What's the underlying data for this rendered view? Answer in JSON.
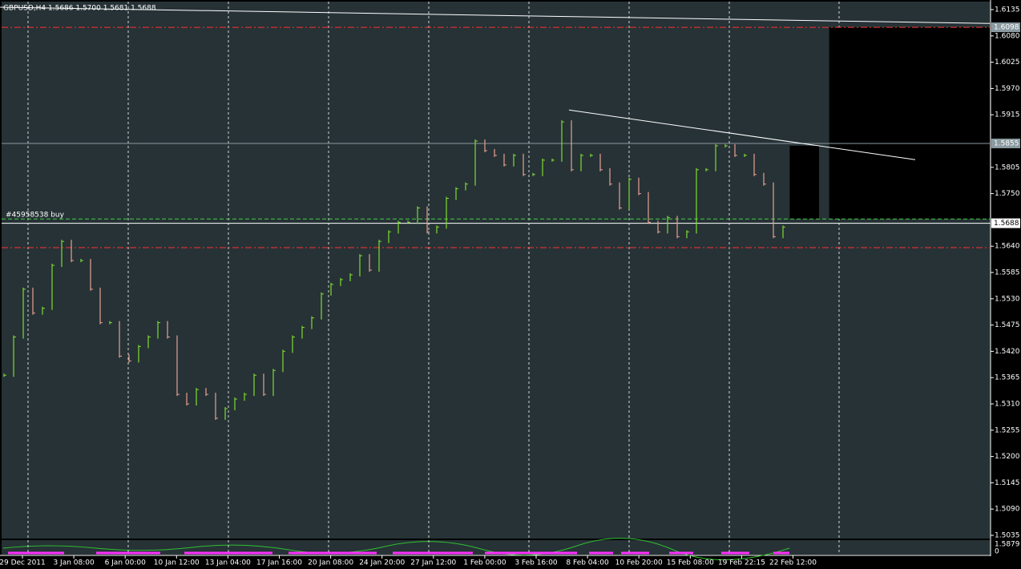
{
  "header": "GBPUSD,H4  1.5686 1.5700 1.5681 1.5688",
  "order_label": "#45958538 buy",
  "mark": "?",
  "chart_data": {
    "type": "bars",
    "close": [
      1.537,
      1.545,
      1.555,
      1.55,
      1.551,
      1.56,
      1.565,
      1.561,
      1.561,
      1.555,
      1.548,
      1.548,
      1.541,
      1.54,
      1.543,
      1.545,
      1.548,
      1.545,
      1.533,
      1.531,
      1.534,
      1.533,
      1.528,
      1.53,
      1.532,
      1.533,
      1.537,
      1.533,
      1.538,
      1.542,
      1.545,
      1.547,
      1.549,
      1.554,
      1.556,
      1.557,
      1.558,
      1.562,
      1.559,
      1.565,
      1.567,
      1.569,
      1.569,
      1.572,
      1.567,
      1.568,
      1.574,
      1.576,
      1.577,
      1.586,
      1.584,
      1.583,
      1.581,
      1.583,
      1.579,
      1.579,
      1.582,
      1.582,
      1.59,
      1.58,
      1.583,
      1.583,
      1.58,
      1.577,
      1.572,
      1.578,
      1.575,
      1.569,
      1.567,
      1.57,
      1.566,
      1.567,
      1.58,
      1.58,
      1.585,
      1.585,
      1.583,
      1.583,
      1.579,
      1.577,
      1.566,
      1.568
    ],
    "up_color": "#7fdc30",
    "down_color": "#e8a090",
    "ylim": [
      1.5035,
      1.6135
    ],
    "yticks": [
      1.6135,
      {
        "value": 1.608,
        "label": "1.6080"
      },
      1.6025,
      {
        "value": 1.597,
        "label": "1.5970"
      },
      1.5915,
      1.5805,
      {
        "value": 1.575,
        "label": "1.5750"
      },
      {
        "value": 1.564,
        "label": "1.5640"
      },
      1.5585,
      {
        "value": 1.553,
        "label": "1.5530"
      },
      1.5475,
      {
        "value": 1.542,
        "label": "1.5420"
      },
      1.5365,
      {
        "value": 1.531,
        "label": "1.5310"
      },
      1.5255,
      {
        "value": 1.52,
        "label": "1.5200"
      },
      1.5145,
      {
        "value": 1.509,
        "label": "1.5090"
      },
      1.5035
    ],
    "price_tags": [
      1.6098,
      1.5855,
      1.5688
    ],
    "levels": [
      {
        "price": 1.6098,
        "color": "#ff3030",
        "dash": "8 3 2 3"
      },
      {
        "price": 1.5637,
        "color": "#ff3030",
        "dash": "8 3 2 3"
      },
      {
        "price": 1.5697,
        "color": "#40d040",
        "dash": "5 3"
      },
      {
        "price": 1.5855,
        "color": "#8a9aa0",
        "dash": "none"
      },
      {
        "price": 1.5688,
        "color": "#ffffff",
        "dash": "none"
      }
    ],
    "trendlines": [
      {
        "from": [
          58.75,
          1.5925
        ],
        "to": [
          94.75,
          1.5821
        ]
      },
      {
        "from": [
          -0.4,
          1.614
        ],
        "to": [
          102.5,
          1.6106
        ]
      }
    ],
    "boxes": [
      {
        "from": [
          81.7,
          1.585
        ],
        "to": [
          84.75,
          1.5697
        ]
      },
      {
        "from": [
          85.8,
          1.6098
        ],
        "to": [
          102.5,
          1.5697
        ]
      }
    ],
    "x_labels": [
      "29 Dec 2011",
      "3 Jan 08:00",
      "6 Jan 00:00",
      "10 Jan 12:00",
      "13 Jan 04:00",
      "17 Jan 16:00",
      "20 Jan 08:00",
      "24 Jan 20:00",
      "27 Jan 12:00",
      "1 Feb 00:00",
      "3 Feb 16:00",
      "8 Feb 04:00",
      "10 Feb 20:00",
      "15 Feb 08:00",
      "19 Feb 22:15",
      "22 Feb 12:00"
    ],
    "indicator_tags": [
      "1.5879",
      "0"
    ]
  }
}
